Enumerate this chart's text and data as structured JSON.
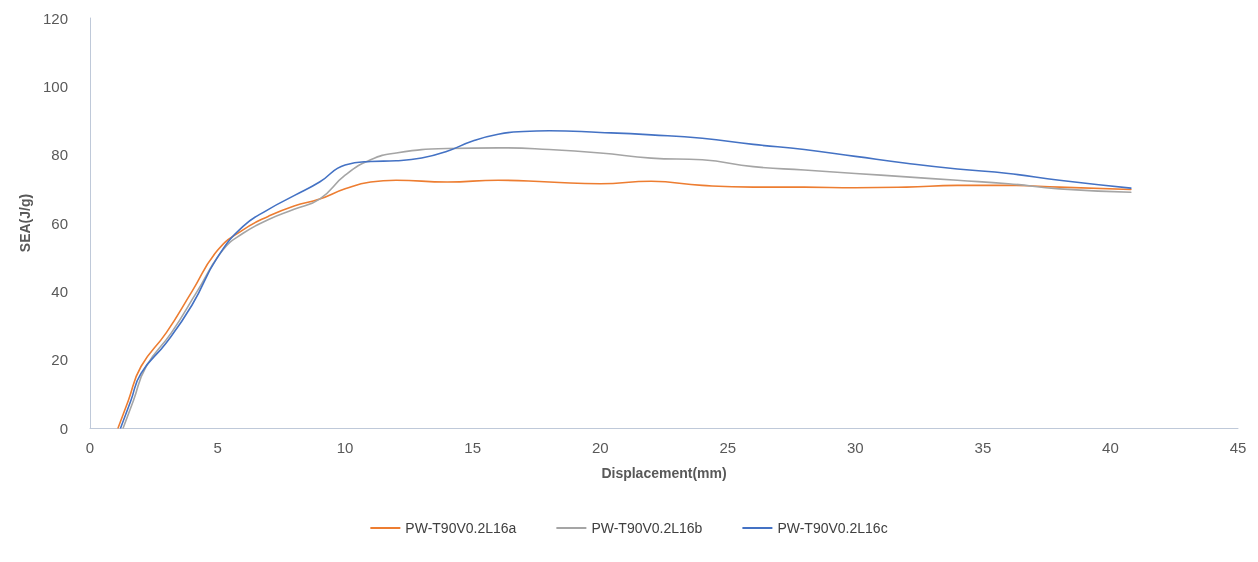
{
  "chart_data": {
    "type": "line",
    "xlabel": "Displacement(mm)",
    "ylabel": "SEA(J/g)",
    "xlim": [
      0,
      45
    ],
    "xticks": [
      0,
      5,
      10,
      15,
      20,
      25,
      30,
      35,
      40,
      45
    ],
    "ylim": [
      0,
      120
    ],
    "yticks": [
      0,
      20,
      40,
      60,
      80,
      100,
      120
    ],
    "grid": false,
    "legend": "bottom",
    "marker": "none",
    "line_style": "solid",
    "series": [
      {
        "name": "PW-T90V0.2L16a",
        "color": "#ed7d31",
        "x": [
          1.1,
          1.5,
          2,
          3,
          4,
          5,
          6,
          7,
          8,
          9,
          10,
          11,
          12,
          14,
          16,
          18,
          20,
          22,
          24,
          26,
          28,
          30,
          32,
          34,
          36,
          38,
          40.8
        ],
        "values": [
          0,
          8,
          18,
          28,
          40,
          52,
          58,
          62,
          65,
          67,
          70,
          72,
          72.5,
          72,
          72.5,
          72,
          71.5,
          72.2,
          71,
          70.5,
          70.5,
          70.3,
          70.5,
          71,
          71,
          70.5,
          69.8
        ]
      },
      {
        "name": "PW-T90V0.2L16b",
        "color": "#a5a5a5",
        "x": [
          1.3,
          1.7,
          2.2,
          3.2,
          4.2,
          5.2,
          6,
          7,
          8,
          9,
          10,
          11,
          12,
          14,
          16,
          18,
          20,
          22,
          24,
          26,
          28,
          30,
          32,
          34,
          36,
          38,
          40.8
        ],
        "values": [
          0,
          8,
          18,
          28,
          40,
          52,
          57,
          61,
          64,
          67,
          74,
          78.5,
          80.5,
          81.8,
          82,
          81.5,
          80.5,
          79,
          78.5,
          76.5,
          75.5,
          74.5,
          73.5,
          72.5,
          71.5,
          70,
          69
        ]
      },
      {
        "name": "PW-T90V0.2L16c",
        "color": "#4472c4",
        "x": [
          1.2,
          1.6,
          2,
          3,
          4,
          5,
          6,
          7,
          8,
          9,
          10,
          11,
          12,
          13,
          14,
          15,
          16,
          17,
          18,
          20,
          22,
          24,
          26,
          28,
          30,
          32,
          34,
          36,
          38,
          40.8
        ],
        "values": [
          0,
          8,
          16,
          25,
          36,
          50,
          59,
          64,
          68,
          72,
          77,
          78,
          78.2,
          79,
          81,
          84,
          86,
          86.8,
          87,
          86.5,
          85.8,
          84.8,
          83,
          81.5,
          79.5,
          77.5,
          75.8,
          74.5,
          72.5,
          70.2
        ]
      }
    ]
  }
}
